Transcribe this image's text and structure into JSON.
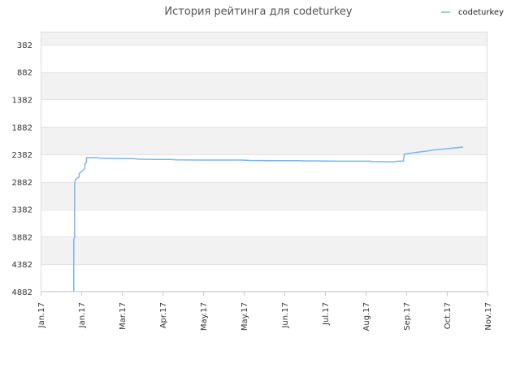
{
  "chart_data": {
    "type": "line",
    "title": "История рейтинга для codeturkey",
    "xlabel": "",
    "ylabel": "",
    "y_reversed": true,
    "ylim": [
      4882,
      147
    ],
    "y_ticks": [
      382,
      882,
      1382,
      1882,
      2382,
      2882,
      3382,
      3882,
      4382,
      4882
    ],
    "y_tick_labels": [
      "382",
      "882",
      "1382",
      "1882",
      "2382",
      "2882",
      "3382",
      "3882",
      "4382",
      "4882"
    ],
    "x_tick_labels": [
      "Jan.17",
      "Jan.17",
      "Mar.17",
      "Apr.17",
      "May.17",
      "May.17",
      "Jun.17",
      "Jul.17",
      "Aug.17",
      "Sep.17",
      "Oct.17",
      "Nov.17"
    ],
    "grid": true,
    "band_colors": [
      "#f2f2f2",
      "#ffffff"
    ],
    "legend": {
      "position": "top-right",
      "entries": [
        "codeturkey"
      ]
    },
    "series": [
      {
        "name": "codeturkey",
        "color": "#7cb5ec",
        "points": [
          [
            0.817,
            4882
          ],
          [
            0.817,
            3930
          ],
          [
            0.835,
            3900
          ],
          [
            0.835,
            2900
          ],
          [
            0.87,
            2830
          ],
          [
            0.95,
            2790
          ],
          [
            0.95,
            2730
          ],
          [
            1.0,
            2700
          ],
          [
            1.09,
            2640
          ],
          [
            1.09,
            2560
          ],
          [
            1.13,
            2530
          ],
          [
            1.13,
            2440
          ],
          [
            1.4,
            2440
          ],
          [
            1.45,
            2450
          ],
          [
            1.85,
            2455
          ],
          [
            2.0,
            2460
          ],
          [
            2.3,
            2460
          ],
          [
            2.42,
            2470
          ],
          [
            2.9,
            2475
          ],
          [
            3.2,
            2475
          ],
          [
            3.35,
            2480
          ],
          [
            3.95,
            2485
          ],
          [
            4.95,
            2485
          ],
          [
            5.15,
            2492
          ],
          [
            5.75,
            2495
          ],
          [
            6.3,
            2495
          ],
          [
            6.5,
            2500
          ],
          [
            7.35,
            2505
          ],
          [
            8.1,
            2505
          ],
          [
            8.2,
            2515
          ],
          [
            8.4,
            2515
          ],
          [
            8.7,
            2518
          ],
          [
            8.78,
            2505
          ],
          [
            8.93,
            2505
          ],
          [
            8.95,
            2380
          ],
          [
            9.05,
            2365
          ],
          [
            9.1,
            2360
          ],
          [
            9.3,
            2340
          ],
          [
            9.5,
            2320
          ],
          [
            9.7,
            2300
          ],
          [
            9.9,
            2285
          ],
          [
            10.1,
            2270
          ],
          [
            10.4,
            2248
          ]
        ]
      }
    ]
  }
}
